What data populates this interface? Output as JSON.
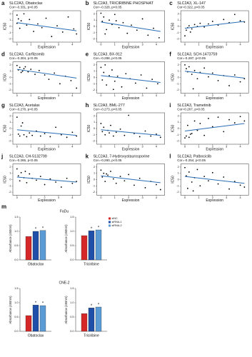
{
  "chart_data": [
    {
      "type": "scatter",
      "label": "a",
      "title": "SLC2A3, Obatoclax",
      "subtitle": "Cor=-0.331, p<0.05",
      "xlabel": "Expression",
      "ylabel": "IC50",
      "xlim": [
        -0.3,
        4.6
      ],
      "xticks": [
        0,
        1,
        2,
        3,
        4
      ],
      "ylim": [
        -2.5,
        2.5
      ],
      "yticks": [
        -2,
        -1,
        0,
        1,
        2
      ],
      "x": [
        0,
        0,
        0.1,
        0.2,
        0.3,
        0.5,
        0.7,
        0.9,
        1.2,
        1.5,
        1.8,
        2.1,
        2.5,
        2.9,
        3.3,
        3.7,
        4.1,
        4.3
      ],
      "y": [
        1.8,
        0.5,
        1.2,
        -0.3,
        0.9,
        2.0,
        0.2,
        1.1,
        -0.8,
        0.4,
        -0.2,
        1.3,
        -1.6,
        0.1,
        -0.9,
        1.5,
        -0.4,
        -1.2
      ],
      "fit": {
        "x": [
          0,
          4.3
        ],
        "y": [
          0.6,
          -0.7
        ]
      }
    },
    {
      "type": "scatter",
      "label": "b",
      "title": "SLC2A3, TRICIRIBINE PHOSPHAT",
      "subtitle": "Cor=-0.328, p<0.05",
      "xlabel": "Expression",
      "ylabel": "IC50",
      "xlim": [
        -0.3,
        4.6
      ],
      "xticks": [
        0,
        1,
        2,
        3,
        4
      ],
      "ylim": [
        -2.5,
        2.5
      ],
      "yticks": [
        -2,
        -1,
        0,
        1,
        2
      ],
      "x": [
        0,
        0.1,
        0.2,
        0.4,
        0.6,
        0.8,
        1.0,
        1.3,
        1.6,
        1.9,
        2.2,
        2.6,
        3.0,
        3.4,
        3.8,
        4.2,
        0.3,
        1.1
      ],
      "y": [
        2.1,
        0.8,
        1.5,
        -0.5,
        1.0,
        0.3,
        1.9,
        -0.2,
        0.6,
        -1.1,
        0.2,
        -0.6,
        1.2,
        -1.4,
        -0.3,
        -1.8,
        -1.2,
        0.9
      ],
      "fit": {
        "x": [
          0,
          4.3
        ],
        "y": [
          0.7,
          -0.8
        ]
      }
    },
    {
      "type": "scatter",
      "label": "c",
      "title": "SLC2A3, XL-147",
      "subtitle": "Cor=0.322, p<0.05",
      "xlabel": "Expression",
      "ylabel": "IC50",
      "xlim": [
        -0.3,
        4.6
      ],
      "xticks": [
        0,
        1,
        2,
        3,
        4
      ],
      "ylim": [
        -2.5,
        2.5
      ],
      "yticks": [
        -2,
        -1,
        0,
        1,
        2
      ],
      "x": [
        0,
        0.1,
        0.2,
        0.3,
        0.5,
        0.7,
        0.9,
        1.1,
        1.4,
        1.7,
        2.0,
        2.4,
        2.8,
        3.2,
        3.6,
        4.0,
        4.3,
        0.4
      ],
      "y": [
        -1.5,
        -0.6,
        -0.2,
        0.1,
        -0.4,
        0.3,
        0.0,
        0.5,
        -0.1,
        0.4,
        0.8,
        0.2,
        1.1,
        0.6,
        1.9,
        0.9,
        0.7,
        -0.9
      ],
      "fit": {
        "x": [
          0,
          4.3
        ],
        "y": [
          -0.3,
          0.8
        ]
      }
    },
    {
      "type": "scatter",
      "label": "d",
      "title": "SLC2A3, Carfilzomib",
      "subtitle": "Cor=-0.304, p<0.05",
      "xlabel": "Expression",
      "ylabel": "IC50",
      "xlim": [
        -0.3,
        4.6
      ],
      "xticks": [
        0,
        1,
        2,
        3,
        4
      ],
      "ylim": [
        -2.5,
        2.5
      ],
      "yticks": [
        -2,
        -1,
        0,
        1,
        2
      ],
      "x": [
        0,
        0.1,
        0.2,
        0.3,
        0.5,
        0.6,
        0.8,
        1.0,
        1.3,
        1.6,
        2.0,
        2.3,
        2.7,
        3.1,
        3.5,
        3.9,
        4.3,
        0.4
      ],
      "y": [
        1.9,
        1.2,
        1.6,
        0.8,
        1.4,
        1.7,
        0.9,
        1.3,
        0.5,
        1.1,
        0.4,
        -0.3,
        0.7,
        -1.0,
        0.2,
        -0.5,
        -1.7,
        1.0
      ],
      "fit": {
        "x": [
          0,
          4.3
        ],
        "y": [
          1.3,
          -0.1
        ]
      }
    },
    {
      "type": "scatter",
      "label": "e",
      "title": "SLC2A3, BX-912",
      "subtitle": "Cor=-0.288, p<0.05",
      "xlabel": "Expression",
      "ylabel": "IC50",
      "xlim": [
        -0.3,
        4.6
      ],
      "xticks": [
        0,
        1,
        2,
        3,
        4
      ],
      "ylim": [
        -2.5,
        2.5
      ],
      "yticks": [
        -2,
        -1,
        0,
        1,
        2
      ],
      "x": [
        0,
        0.1,
        0.2,
        0.4,
        0.6,
        0.8,
        1.0,
        1.2,
        1.5,
        1.8,
        2.1,
        2.5,
        2.9,
        3.3,
        3.7,
        4.1,
        0.3,
        0.9
      ],
      "y": [
        1.6,
        -0.4,
        0.8,
        -1.2,
        0.3,
        1.2,
        -0.6,
        0.2,
        -1.5,
        0.6,
        -0.2,
        -0.9,
        0.4,
        -1.7,
        -0.3,
        -1.0,
        2.0,
        -1.9
      ],
      "fit": {
        "x": [
          0,
          4.3
        ],
        "y": [
          0.3,
          -0.8
        ]
      }
    },
    {
      "type": "scatter",
      "label": "f",
      "title": "SLC2A3, SCH-1473759",
      "subtitle": "Cor=-0.287, p<0.05",
      "xlabel": "Expression",
      "ylabel": "IC50",
      "xlim": [
        -0.3,
        4.6
      ],
      "xticks": [
        0,
        1,
        2,
        3,
        4
      ],
      "ylim": [
        -2.5,
        2.5
      ],
      "yticks": [
        -2,
        -1,
        0,
        1,
        2
      ],
      "x": [
        0,
        0.1,
        0.2,
        0.3,
        0.5,
        0.7,
        0.9,
        1.1,
        1.4,
        1.7,
        2.0,
        2.4,
        2.8,
        3.2,
        3.6,
        4.0,
        4.3,
        0.6
      ],
      "y": [
        2.0,
        1.4,
        0.9,
        1.7,
        0.5,
        1.1,
        -0.2,
        0.8,
        1.5,
        0.1,
        0.7,
        -0.5,
        0.3,
        -1.3,
        0.4,
        -0.7,
        -0.2,
        -1.8
      ],
      "fit": {
        "x": [
          0,
          4.3
        ],
        "y": [
          1.0,
          -0.1
        ]
      }
    },
    {
      "type": "scatter",
      "label": "g",
      "title": "SLC2A3, Acetalax",
      "subtitle": "Cor=-0.278, p<0.05",
      "xlabel": "Expression",
      "ylabel": "IC50",
      "xlim": [
        -0.3,
        4.6
      ],
      "xticks": [
        0,
        1,
        2,
        3,
        4
      ],
      "ylim": [
        -2.5,
        2.5
      ],
      "yticks": [
        -2,
        -1,
        0,
        1,
        2
      ],
      "x": [
        0,
        0.1,
        0.2,
        0.3,
        0.5,
        0.7,
        0.9,
        1.1,
        1.4,
        1.7,
        2.0,
        2.4,
        2.8,
        3.2,
        3.6,
        4.0,
        4.3,
        0.4
      ],
      "y": [
        1.8,
        -0.9,
        -1.2,
        0.4,
        -1.0,
        -1.3,
        -0.7,
        -1.1,
        -0.4,
        -1.2,
        -0.8,
        -1.3,
        0.2,
        -1.0,
        -1.4,
        -0.6,
        -1.2,
        0.9
      ],
      "fit": {
        "x": [
          0,
          4.3
        ],
        "y": [
          -0.2,
          -1.1
        ]
      }
    },
    {
      "type": "scatter",
      "label": "h",
      "title": "SLC2A3, BML-277",
      "subtitle": "Cor=-0.273, p<0.05",
      "xlabel": "Expression",
      "ylabel": "IC50",
      "xlim": [
        -0.3,
        4.6
      ],
      "xticks": [
        0,
        1,
        2,
        3,
        4
      ],
      "ylim": [
        -2.5,
        2.5
      ],
      "yticks": [
        -2,
        -1,
        0,
        1,
        2
      ],
      "x": [
        0,
        0.1,
        0.2,
        0.3,
        0.5,
        0.7,
        0.9,
        1.1,
        1.4,
        1.7,
        2.0,
        2.4,
        2.8,
        3.2,
        3.6,
        4.0,
        4.3,
        0.6
      ],
      "y": [
        0.8,
        -0.5,
        0.2,
        -1.0,
        -0.3,
        0.5,
        -1.2,
        -0.6,
        -0.1,
        -1.1,
        2.1,
        -0.8,
        -1.3,
        -0.4,
        -1.2,
        -0.9,
        -1.4,
        -0.7
      ],
      "fit": {
        "x": [
          0,
          4.3
        ],
        "y": [
          -0.2,
          -1.1
        ]
      }
    },
    {
      "type": "scatter",
      "label": "i",
      "title": "SLC2A3, Trametinib",
      "subtitle": "Cor=0.267, p<0.05",
      "xlabel": "Expression",
      "ylabel": "IC50",
      "xlim": [
        -0.3,
        4.6
      ],
      "xticks": [
        0,
        1,
        2,
        3,
        4
      ],
      "ylim": [
        -2.5,
        2.5
      ],
      "yticks": [
        -2,
        -1,
        0,
        1,
        2
      ],
      "x": [
        0,
        0.1,
        0.2,
        0.3,
        0.5,
        0.7,
        0.9,
        1.1,
        1.4,
        1.7,
        2.0,
        2.4,
        2.8,
        3.2,
        3.6,
        4.0,
        4.3,
        0.4
      ],
      "y": [
        -1.5,
        -1.2,
        0.5,
        -1.4,
        -0.8,
        1.2,
        -0.3,
        0.8,
        -1.1,
        1.6,
        0.3,
        1.8,
        -0.5,
        1.4,
        0.9,
        1.9,
        1.2,
        -0.9
      ],
      "fit": {
        "x": [
          0,
          4.3
        ],
        "y": [
          -0.4,
          0.8
        ]
      }
    },
    {
      "type": "scatter",
      "label": "j",
      "title": "SLC2A3, CH-5132799",
      "subtitle": "Cor=-0.265, p<0.05",
      "xlabel": "Expression",
      "ylabel": "IC50",
      "xlim": [
        -0.3,
        4.6
      ],
      "xticks": [
        0,
        1,
        2,
        3,
        4
      ],
      "ylim": [
        -2.5,
        2.5
      ],
      "yticks": [
        -2,
        -1,
        0,
        1,
        2
      ],
      "x": [
        0,
        0.1,
        0.2,
        0.3,
        0.5,
        0.7,
        0.9,
        1.1,
        1.4,
        1.7,
        2.0,
        2.4,
        2.8,
        3.2,
        3.6,
        4.0,
        4.3,
        0.6
      ],
      "y": [
        1.7,
        0.6,
        -0.2,
        1.1,
        0.3,
        -0.5,
        0.9,
        0.2,
        -0.1,
        0.5,
        -0.8,
        0.1,
        -0.4,
        -1.2,
        0.2,
        -0.6,
        -0.3,
        1.3
      ],
      "fit": {
        "x": [
          0,
          4.3
        ],
        "y": [
          0.4,
          -0.4
        ]
      }
    },
    {
      "type": "scatter",
      "label": "k",
      "title": "SLC2A3, 7-Hydroxystaurosporine",
      "subtitle": "Cor=-0.260, p<0.05",
      "xlabel": "Expression",
      "ylabel": "IC50",
      "xlim": [
        -0.3,
        4.6
      ],
      "xticks": [
        0,
        1,
        2,
        3,
        4
      ],
      "ylim": [
        -2.5,
        2.5
      ],
      "yticks": [
        -2,
        -1,
        0,
        1,
        2
      ],
      "x": [
        0,
        0.1,
        0.2,
        0.3,
        0.5,
        0.7,
        0.9,
        1.1,
        1.4,
        1.7,
        2.0,
        2.4,
        2.8,
        3.2,
        3.6,
        4.0,
        4.3,
        0.4
      ],
      "y": [
        1.5,
        0.4,
        1.0,
        -0.3,
        0.7,
        1.3,
        0.1,
        -0.6,
        0.5,
        -0.2,
        0.8,
        -0.9,
        0.2,
        -1.3,
        -0.3,
        -0.8,
        -1.6,
        0.9
      ],
      "fit": {
        "x": [
          0,
          4.3
        ],
        "y": [
          0.6,
          -0.5
        ]
      }
    },
    {
      "type": "scatter",
      "label": "l",
      "title": "SLC2A3, Palbociclib",
      "subtitle": "Cor=-0.254, p<0.05",
      "xlabel": "Expression",
      "ylabel": "IC50",
      "xlim": [
        -0.3,
        4.6
      ],
      "xticks": [
        0,
        1,
        2,
        3,
        4
      ],
      "ylim": [
        -2.5,
        2.5
      ],
      "yticks": [
        -2,
        -1,
        0,
        1,
        2
      ],
      "x": [
        0,
        0.1,
        0.2,
        0.3,
        0.5,
        0.7,
        0.9,
        1.1,
        1.4,
        1.7,
        2.0,
        2.4,
        2.8,
        3.2,
        3.6,
        4.0,
        4.3,
        0.6
      ],
      "y": [
        1.9,
        0.6,
        -1.4,
        1.2,
        -0.4,
        0.3,
        1.6,
        -1.0,
        0.5,
        -0.2,
        1.1,
        -0.7,
        0.4,
        -1.5,
        -0.3,
        -0.9,
        -1.2,
        -1.8
      ],
      "fit": {
        "x": [
          0,
          4.3
        ],
        "y": [
          0.5,
          -0.6
        ]
      }
    },
    {
      "type": "bar",
      "label": "m",
      "title": "FaDu",
      "ylabel": "Absorbance (450nm)",
      "categories": [
        "Obatoclax",
        "Triciribine"
      ],
      "legend": true,
      "ylim": [
        0,
        1.5
      ],
      "yticks": [
        {
          "value": 0,
          "label": "0.0"
        },
        {
          "value": 0.5,
          "label": "0.5"
        },
        {
          "value": 1,
          "label": "1.0"
        },
        {
          "value": 1.5,
          "label": "1.5"
        }
      ],
      "series": [
        {
          "name": "siNC",
          "color": "#d62728",
          "values": [
            0.82,
            0.85
          ]
        },
        {
          "name": "siRNA-1",
          "color": "#1f4fa8",
          "values": [
            1.0,
            1.02
          ],
          "marks": [
            "*",
            "*"
          ]
        },
        {
          "name": "siRNA-2",
          "color": "#5b9bd5",
          "values": [
            1.03,
            1.05
          ],
          "marks": [
            "*",
            "*"
          ]
        }
      ]
    },
    {
      "type": "bar",
      "title": "CNE-2",
      "ylabel": "Absorbance (450nm)",
      "categories": [
        "Obatoclax",
        "Triciribine"
      ],
      "legend": false,
      "ylim": [
        0,
        1.5
      ],
      "yticks": [
        {
          "value": 0,
          "label": "0.0"
        },
        {
          "value": 0.5,
          "label": "0.5"
        },
        {
          "value": 1,
          "label": "1.0"
        },
        {
          "value": 1.5,
          "label": "1.5"
        }
      ],
      "series": [
        {
          "name": "siNC",
          "color": "#d62728",
          "values": [
            0.55,
            0.62
          ]
        },
        {
          "name": "siRNA-1",
          "color": "#1f4fa8",
          "values": [
            0.92,
            0.82
          ],
          "marks": [
            "*",
            "*"
          ]
        },
        {
          "name": "siRNA-2",
          "color": "#5b9bd5",
          "values": [
            0.9,
            0.85
          ],
          "marks": [
            "*",
            "*"
          ]
        }
      ]
    }
  ]
}
